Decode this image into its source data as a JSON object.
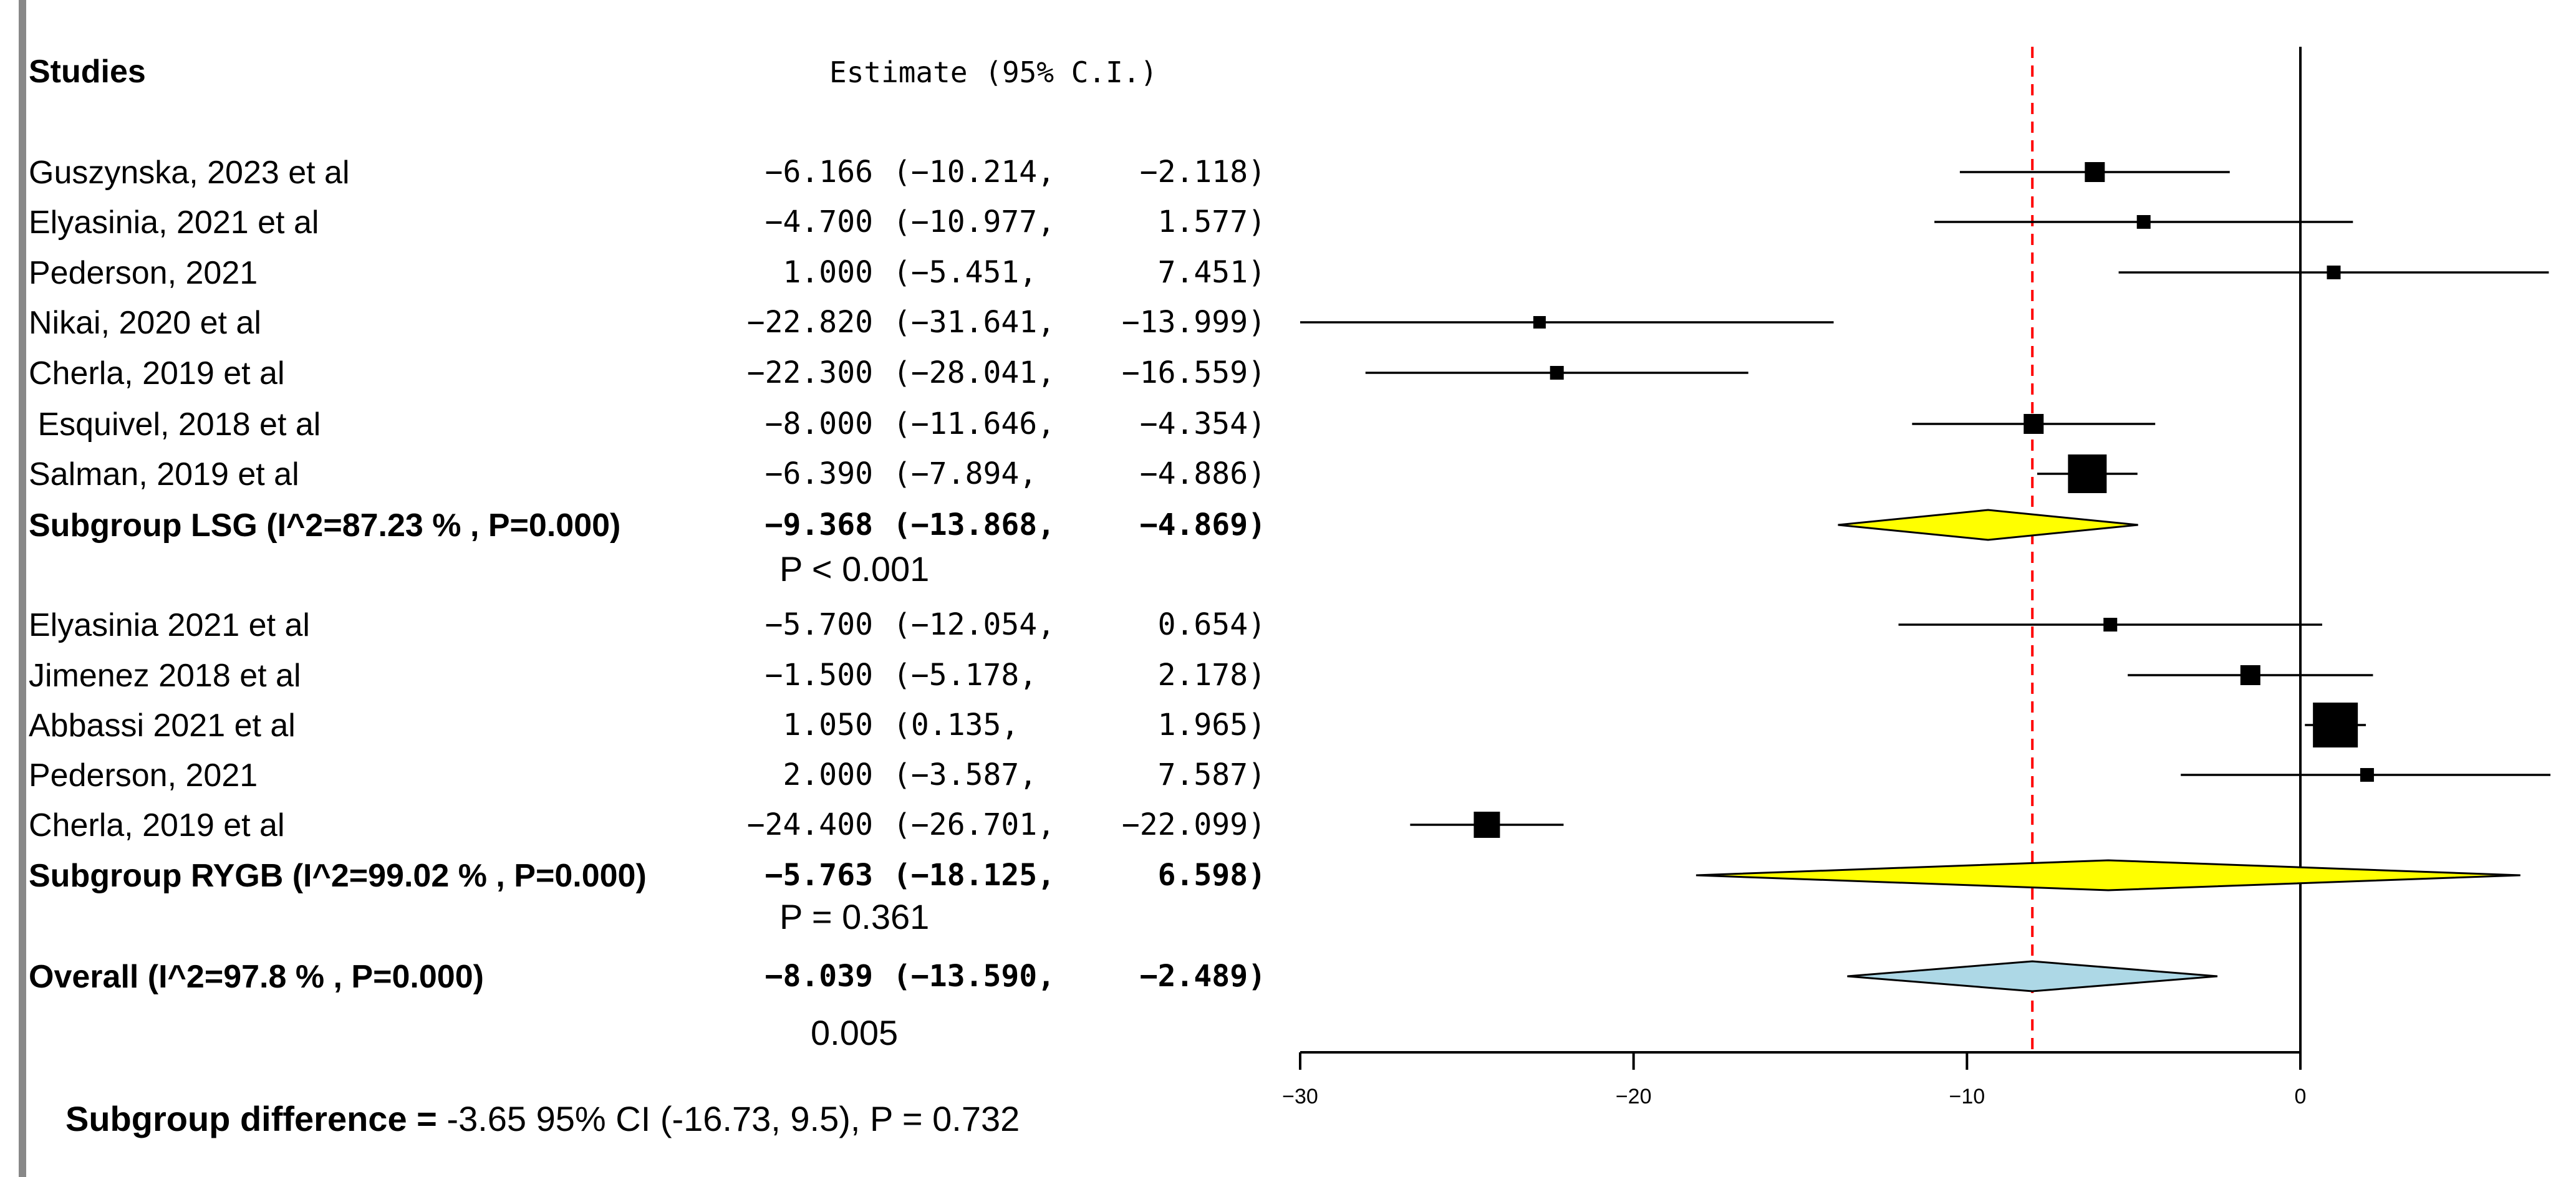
{
  "header": {
    "studies": "Studies",
    "estimate": "Estimate (95% C.I.)"
  },
  "chart_data": {
    "type": "forest",
    "xlim": [
      -30,
      7.5
    ],
    "xticks": [
      -30,
      -20,
      -10,
      0
    ],
    "xtick_labels": [
      "−30",
      "−20",
      "−10",
      "0"
    ],
    "reference_line": 0,
    "overall_line": -8.039,
    "grid": false,
    "rows": [
      {
        "kind": "study",
        "label": "Guszynska, 2023 et al",
        "est": -6.166,
        "lo": -10.214,
        "hi": -2.118,
        "est_text": "−6.166",
        "ci_text": "(−10.214,  −2.118)",
        "weight": 2
      },
      {
        "kind": "study",
        "label": "Elyasinia, 2021 et al",
        "est": -4.7,
        "lo": -10.977,
        "hi": 1.577,
        "est_text": "−4.700",
        "ci_text": "(−10.977,   1.577)",
        "weight": 1
      },
      {
        "kind": "study",
        "label": "Pederson, 2021",
        "est": 1.0,
        "lo": -5.451,
        "hi": 7.451,
        "est_text": "1.000",
        "ci_text": "(−5.451,   7.451)",
        "weight": 1
      },
      {
        "kind": "study",
        "label": "Nikai, 2020 et al",
        "est": -22.82,
        "lo": -31.641,
        "hi": -13.999,
        "est_text": "−22.820",
        "ci_text": "(−31.641, −13.999)",
        "weight": 0.8
      },
      {
        "kind": "study",
        "label": "Cherla, 2019 et al",
        "est": -22.3,
        "lo": -28.041,
        "hi": -16.559,
        "est_text": "−22.300",
        "ci_text": "(−28.041, −16.559)",
        "weight": 1
      },
      {
        "kind": "study",
        "label": " Esquivel, 2018 et al",
        "est": -8.0,
        "lo": -11.646,
        "hi": -4.354,
        "est_text": "−8.000",
        "ci_text": "(−11.646,  −4.354)",
        "weight": 2
      },
      {
        "kind": "study",
        "label": "Salman, 2019 et al",
        "est": -6.39,
        "lo": -7.894,
        "hi": -4.886,
        "est_text": "−6.390",
        "ci_text": "(−7.894,  −4.886)",
        "weight": 5
      },
      {
        "kind": "summary",
        "label": "Subgroup LSG (I^2=87.23 % , P=0.000)",
        "est": -9.368,
        "lo": -13.868,
        "hi": -4.869,
        "est_text": "−9.368",
        "ci_text": "(−13.868,  −4.869)",
        "color": "#ffff00"
      },
      {
        "kind": "note",
        "label": "P < 0.001"
      },
      {
        "kind": "study",
        "label": "Elyasinia 2021 et al",
        "est": -5.7,
        "lo": -12.054,
        "hi": 0.654,
        "est_text": "−5.700",
        "ci_text": "(−12.054,   0.654)",
        "weight": 1
      },
      {
        "kind": "study",
        "label": "Jimenez 2018 et al",
        "est": -1.5,
        "lo": -5.178,
        "hi": 2.178,
        "est_text": "−1.500",
        "ci_text": "(−5.178,   2.178)",
        "weight": 2
      },
      {
        "kind": "study",
        "label": "Abbassi 2021 et al",
        "est": 1.05,
        "lo": 0.135,
        "hi": 1.965,
        "est_text": "1.050",
        "ci_text": "(0.135,   1.965)",
        "weight": 6
      },
      {
        "kind": "study",
        "label": "Pederson, 2021",
        "est": 2.0,
        "lo": -3.587,
        "hi": 7.587,
        "est_text": "2.000",
        "ci_text": "(−3.587,   7.587)",
        "weight": 1
      },
      {
        "kind": "study",
        "label": "Cherla, 2019 et al",
        "est": -24.4,
        "lo": -26.701,
        "hi": -22.099,
        "est_text": "−24.400",
        "ci_text": "(−26.701, −22.099)",
        "weight": 3
      },
      {
        "kind": "summary",
        "label": "Subgroup RYGB (I^2=99.02 % , P=0.000)",
        "est": -5.763,
        "lo": -18.125,
        "hi": 6.598,
        "est_text": "−5.763",
        "ci_text": "(−18.125,   6.598)",
        "color": "#ffff00"
      },
      {
        "kind": "note",
        "label": "P = 0.361"
      },
      {
        "kind": "overall",
        "label": "Overall (I^2=97.8 % , P=0.000)",
        "est": -8.039,
        "lo": -13.59,
        "hi": -2.489,
        "est_text": "−8.039",
        "ci_text": "(−13.590,  −2.489)",
        "color": "#add8e6"
      },
      {
        "kind": "note",
        "label": "0.005"
      }
    ]
  },
  "footer": {
    "bold": "Subgroup difference =",
    "text": " -3.65 95% CI (-16.73, 9.5), P = 0.732"
  },
  "colors": {
    "reference_line": "#000000",
    "overall_line": "#ff0000"
  }
}
